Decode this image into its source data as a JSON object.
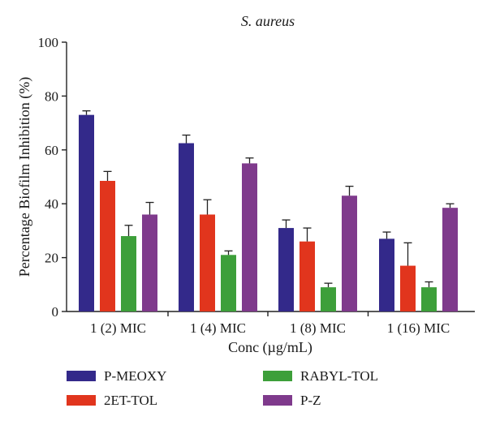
{
  "chart_data": {
    "type": "bar",
    "title": "S. aureus",
    "xlabel": "Conc (µg/mL)",
    "ylabel": "Percentage Biofilm Inhibition (%)",
    "ylim": [
      0,
      100
    ],
    "yticks": [
      "0",
      "20",
      "40",
      "60",
      "80",
      "100"
    ],
    "categories": [
      "1 (2) MIC",
      "1 (4) MIC",
      "1 (8) MIC",
      "1 (16) MIC"
    ],
    "series": [
      {
        "name": "P-MEOXY",
        "color": "#33298a",
        "values": [
          73,
          62.5,
          31,
          27
        ],
        "errors": [
          1.5,
          3,
          3,
          2.5
        ]
      },
      {
        "name": "2ET-TOL",
        "color": "#e1351d",
        "values": [
          48.5,
          36,
          26,
          17
        ],
        "errors": [
          3.5,
          5.5,
          5,
          8.5
        ]
      },
      {
        "name": "RABYL-TOL",
        "color": "#3d9f3a",
        "values": [
          28,
          21,
          9,
          9
        ],
        "errors": [
          4,
          1.5,
          1.5,
          2
        ]
      },
      {
        "name": "P-Z",
        "color": "#7f3a8c",
        "values": [
          36,
          55,
          43,
          38.5
        ],
        "errors": [
          4.5,
          2,
          3.5,
          1.5
        ]
      }
    ],
    "legend_position": "bottom",
    "grid": false
  }
}
